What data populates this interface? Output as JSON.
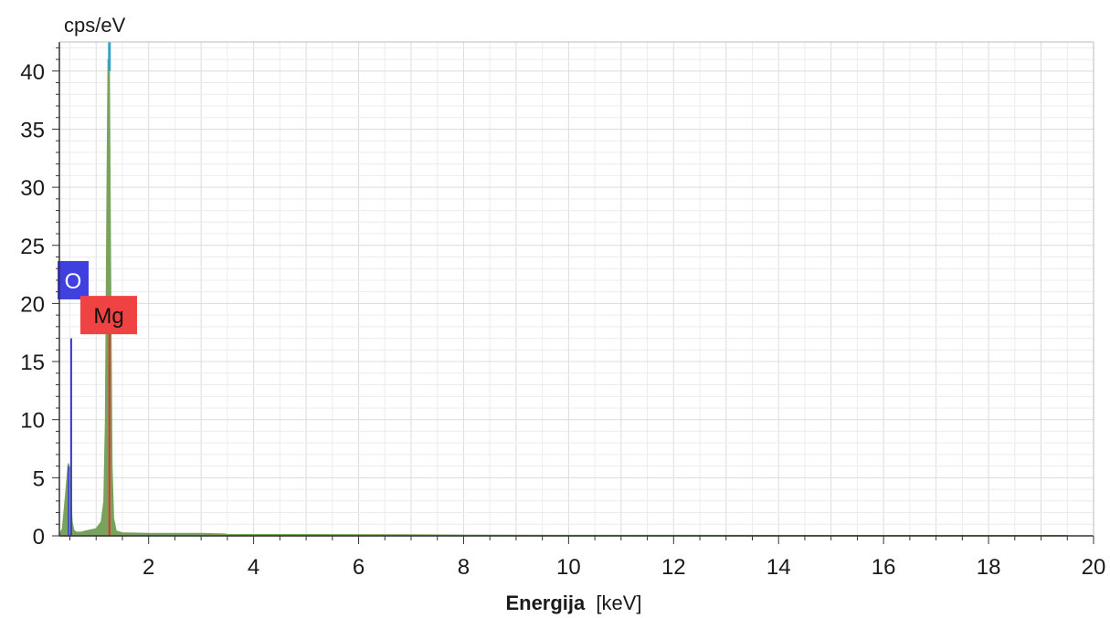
{
  "chart_data": {
    "type": "area",
    "ylabel": "cps/eV",
    "xlabel": {
      "bold": "Energija",
      "unit": "[keV]"
    },
    "xlim": [
      0.3,
      20
    ],
    "ylim": [
      0,
      42.5
    ],
    "x_ticks": [
      2,
      4,
      6,
      8,
      10,
      12,
      14,
      16,
      18,
      20
    ],
    "y_ticks": [
      0,
      5,
      10,
      15,
      20,
      25,
      30,
      35,
      40
    ],
    "grid": true,
    "spectrum": {
      "color": "#78a35c",
      "x": [
        0.3,
        0.36,
        0.42,
        0.47,
        0.5,
        0.52,
        0.54,
        0.57,
        0.62,
        0.7,
        0.8,
        0.9,
        1.0,
        1.1,
        1.15,
        1.18,
        1.21,
        1.23,
        1.25,
        1.27,
        1.3,
        1.33,
        1.38,
        1.5,
        2.0,
        3.0,
        3.45,
        3.5,
        5.0,
        7.0,
        8.0,
        10.0,
        15.0,
        19.5
      ],
      "y": [
        0.1,
        0.6,
        3.5,
        6.2,
        5.8,
        3.0,
        1.2,
        0.5,
        0.3,
        0.3,
        0.4,
        0.5,
        0.6,
        1.2,
        3.0,
        10.0,
        30.0,
        41.0,
        40.0,
        25.0,
        6.0,
        1.5,
        0.4,
        0.25,
        0.2,
        0.2,
        0.15,
        0.1,
        0.1,
        0.08,
        0.05,
        0.03,
        0.02,
        0.02
      ]
    },
    "element_lines": [
      {
        "element": "O",
        "energy": 0.525,
        "height": 17.0,
        "color": "#3a3ad8"
      },
      {
        "element": "Mg",
        "energy": 1.253,
        "height": 19.0,
        "color": "#e83030"
      }
    ],
    "top_marker": {
      "energy": 1.253,
      "color": "#3aa0c8"
    },
    "element_labels": [
      {
        "text": "O",
        "bg": "#4040e0",
        "fg": "#ffffff",
        "energy": 0.48,
        "y": 22
      },
      {
        "text": "Mg",
        "bg": "#ef4343",
        "fg": "#111111",
        "energy": 1.2,
        "y": 19
      }
    ]
  }
}
